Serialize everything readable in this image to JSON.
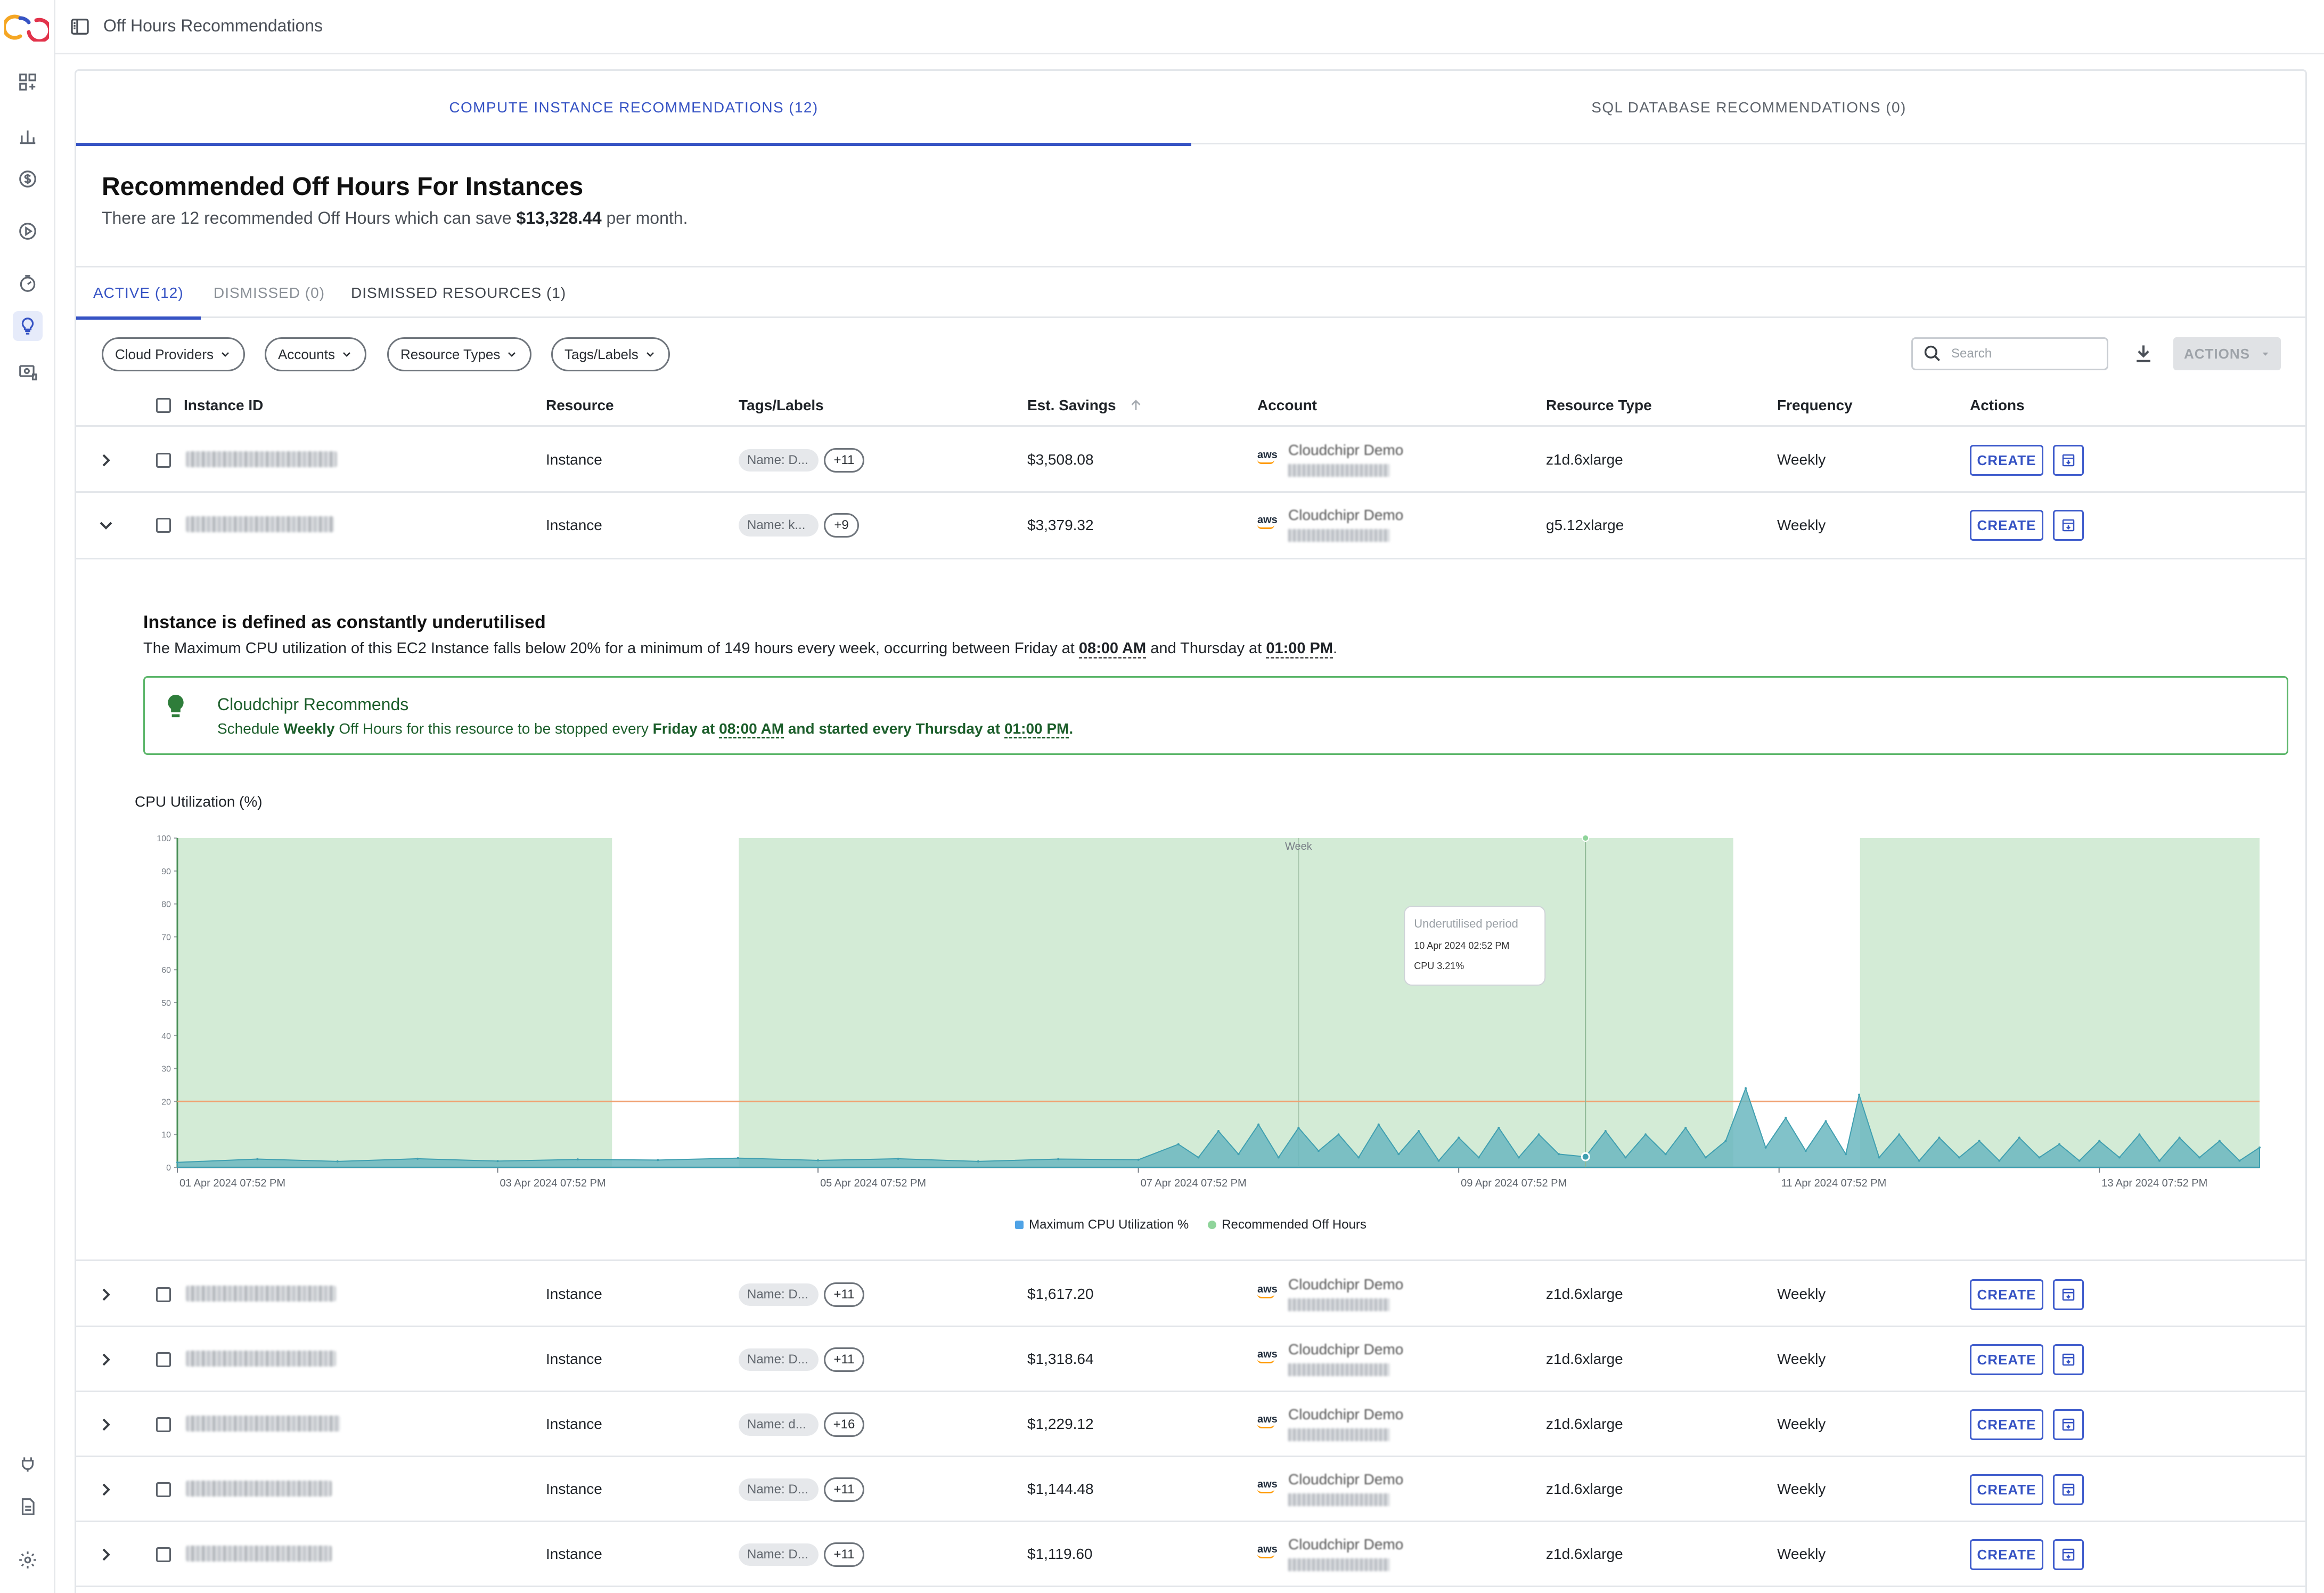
{
  "header": {
    "title": "Off Hours Recommendations"
  },
  "main_tabs": [
    {
      "label": "COMPUTE INSTANCE RECOMMENDATIONS (12)",
      "active": true
    },
    {
      "label": "SQL DATABASE RECOMMENDATIONS (0)",
      "active": false
    }
  ],
  "summary": {
    "heading": "Recommended Off Hours For Instances",
    "text_before": "There are 12 recommended Off Hours which can save ",
    "amount": "$13,328.44",
    "text_after": " per month."
  },
  "sub_tabs": [
    {
      "label": "ACTIVE (12)"
    },
    {
      "label": "DISMISSED (0)"
    },
    {
      "label": "DISMISSED RESOURCES (1)"
    }
  ],
  "filters": [
    "Cloud Providers",
    "Accounts",
    "Resource Types",
    "Tags/Labels"
  ],
  "search": {
    "placeholder": "Search"
  },
  "actions_label": "ACTIONS",
  "columns": [
    "Instance ID",
    "Resource",
    "Tags/Labels",
    "Est. Savings",
    "Account",
    "Resource Type",
    "Frequency",
    "Actions"
  ],
  "rows": [
    {
      "resource": "Instance",
      "tag": "Name: D...",
      "tag_count": "+11",
      "savings": "$3,508.08",
      "account": "Cloudchipr Demo",
      "type": "z1d.6xlarge",
      "frequency": "Weekly",
      "action": "CREATE"
    },
    {
      "resource": "Instance",
      "tag": "Name: k...",
      "tag_count": "+9",
      "savings": "$3,379.32",
      "account": "Cloudchipr Demo",
      "type": "g5.12xlarge",
      "frequency": "Weekly",
      "action": "CREATE"
    },
    {
      "resource": "Instance",
      "tag": "Name: D...",
      "tag_count": "+11",
      "savings": "$1,617.20",
      "account": "Cloudchipr Demo",
      "type": "z1d.6xlarge",
      "frequency": "Weekly",
      "action": "CREATE"
    },
    {
      "resource": "Instance",
      "tag": "Name: D...",
      "tag_count": "+11",
      "savings": "$1,318.64",
      "account": "Cloudchipr Demo",
      "type": "z1d.6xlarge",
      "frequency": "Weekly",
      "action": "CREATE"
    },
    {
      "resource": "Instance",
      "tag": "Name: d...",
      "tag_count": "+16",
      "savings": "$1,229.12",
      "account": "Cloudchipr Demo",
      "type": "z1d.6xlarge",
      "frequency": "Weekly",
      "action": "CREATE"
    },
    {
      "resource": "Instance",
      "tag": "Name: D...",
      "tag_count": "+11",
      "savings": "$1,144.48",
      "account": "Cloudchipr Demo",
      "type": "z1d.6xlarge",
      "frequency": "Weekly",
      "action": "CREATE"
    },
    {
      "resource": "Instance",
      "tag": "Name: D...",
      "tag_count": "+11",
      "savings": "$1,119.60",
      "account": "Cloudchipr Demo",
      "type": "z1d.6xlarge",
      "frequency": "Weekly",
      "action": "CREATE"
    }
  ],
  "expanded": {
    "title": "Instance is defined as constantly underutilised",
    "desc_prefix": "The Maximum CPU utilization of this EC2 Instance falls below 20% for a minimum of 149 hours every week, occurring between Friday at ",
    "time_start": "08:00 AM",
    "desc_middle": " and Thursday at ",
    "time_end": "01:00 PM",
    "desc_suffix": ".",
    "rec_title": "Cloudchipr Recommends",
    "rec_prefix": "Schedule ",
    "rec_frequency": "Weekly",
    "rec_middle": " Off Hours for this resource to be stopped every ",
    "rec_stop": "Friday at ",
    "rec_stop_time": "08:00 AM",
    "rec_start": " and started every Thursday at ",
    "rec_start_time": "01:00 PM",
    "rec_suffix": "."
  },
  "chart_data": {
    "type": "area",
    "title": "CPU Utilization (%)",
    "ylim": [
      0,
      100
    ],
    "yticks": [
      0,
      10,
      20,
      30,
      40,
      50,
      60,
      70,
      80,
      90,
      100
    ],
    "x_range": [
      "2024-04-01 19:52",
      "2024-04-14 19:52"
    ],
    "xtick_labels": [
      "01 Apr 2024 07:52 PM",
      "03 Apr 2024 07:52 PM",
      "05 Apr 2024 07:52 PM",
      "07 Apr 2024 07:52 PM",
      "09 Apr 2024 07:52 PM",
      "11 Apr 2024 07:52 PM",
      "13 Apr 2024 07:52 PM"
    ],
    "threshold": 20,
    "week_marker": {
      "x": "2024-04-08 19:52",
      "label": "Week"
    },
    "off_hours": [
      {
        "start": "2024-04-01 19:52",
        "end": "2024-04-04 13:00"
      },
      {
        "start": "2024-04-05 08:00",
        "end": "2024-04-11 13:00"
      },
      {
        "start": "2024-04-12 08:00",
        "end": "2024-04-14 19:52"
      }
    ],
    "series": [
      {
        "name": "Maximum CPU Utilization %",
        "color": "#4fa3e6",
        "points": [
          [
            "2024-04-01 19:52",
            1.5
          ],
          [
            "2024-04-02 07:52",
            2.5
          ],
          [
            "2024-04-02 19:52",
            1.8
          ],
          [
            "2024-04-03 07:52",
            2.6
          ],
          [
            "2024-04-03 19:52",
            1.9
          ],
          [
            "2024-04-04 07:52",
            2.4
          ],
          [
            "2024-04-04 19:52",
            2.2
          ],
          [
            "2024-04-05 07:52",
            2.8
          ],
          [
            "2024-04-05 19:52",
            2.1
          ],
          [
            "2024-04-06 07:52",
            2.6
          ],
          [
            "2024-04-06 19:52",
            1.8
          ],
          [
            "2024-04-07 07:52",
            2.5
          ],
          [
            "2024-04-07 19:52",
            2.3
          ],
          [
            "2024-04-08 01:52",
            7
          ],
          [
            "2024-04-08 04:52",
            3
          ],
          [
            "2024-04-08 07:52",
            11
          ],
          [
            "2024-04-08 10:52",
            4
          ],
          [
            "2024-04-08 13:52",
            13
          ],
          [
            "2024-04-08 16:52",
            3
          ],
          [
            "2024-04-08 19:52",
            12
          ],
          [
            "2024-04-08 22:52",
            5
          ],
          [
            "2024-04-09 01:52",
            10
          ],
          [
            "2024-04-09 04:52",
            3
          ],
          [
            "2024-04-09 07:52",
            13
          ],
          [
            "2024-04-09 10:52",
            4
          ],
          [
            "2024-04-09 13:52",
            11
          ],
          [
            "2024-04-09 16:52",
            2
          ],
          [
            "2024-04-09 19:52",
            9
          ],
          [
            "2024-04-09 22:52",
            3
          ],
          [
            "2024-04-10 01:52",
            12
          ],
          [
            "2024-04-10 04:52",
            3
          ],
          [
            "2024-04-10 07:52",
            10
          ],
          [
            "2024-04-10 10:52",
            4
          ],
          [
            "2024-04-10 14:52",
            3.21
          ],
          [
            "2024-04-10 17:52",
            11
          ],
          [
            "2024-04-10 20:52",
            3
          ],
          [
            "2024-04-10 23:52",
            10
          ],
          [
            "2024-04-11 02:52",
            4
          ],
          [
            "2024-04-11 05:52",
            12
          ],
          [
            "2024-04-11 08:52",
            3
          ],
          [
            "2024-04-11 11:52",
            8
          ],
          [
            "2024-04-11 14:52",
            24
          ],
          [
            "2024-04-11 17:52",
            6
          ],
          [
            "2024-04-11 20:52",
            15
          ],
          [
            "2024-04-11 23:52",
            5
          ],
          [
            "2024-04-12 02:52",
            14
          ],
          [
            "2024-04-12 05:52",
            4
          ],
          [
            "2024-04-12 07:52",
            22
          ],
          [
            "2024-04-12 10:52",
            3
          ],
          [
            "2024-04-12 13:52",
            10
          ],
          [
            "2024-04-12 16:52",
            2
          ],
          [
            "2024-04-12 19:52",
            9
          ],
          [
            "2024-04-12 22:52",
            3
          ],
          [
            "2024-04-13 01:52",
            8
          ],
          [
            "2024-04-13 04:52",
            2
          ],
          [
            "2024-04-13 07:52",
            9
          ],
          [
            "2024-04-13 10:52",
            3
          ],
          [
            "2024-04-13 13:52",
            7
          ],
          [
            "2024-04-13 16:52",
            2
          ],
          [
            "2024-04-13 19:52",
            8
          ],
          [
            "2024-04-13 22:52",
            3
          ],
          [
            "2024-04-14 01:52",
            10
          ],
          [
            "2024-04-14 04:52",
            2
          ],
          [
            "2024-04-14 07:52",
            9
          ],
          [
            "2024-04-14 10:52",
            3
          ],
          [
            "2024-04-14 13:52",
            8
          ],
          [
            "2024-04-14 16:52",
            2
          ],
          [
            "2024-04-14 19:52",
            6
          ]
        ]
      },
      {
        "name": "Recommended Off Hours",
        "color": "#8fd49a"
      }
    ],
    "tooltip": {
      "title": "Underutilised period",
      "time": "10 Apr 2024 02:52 PM",
      "value": "CPU 3.21%"
    }
  }
}
